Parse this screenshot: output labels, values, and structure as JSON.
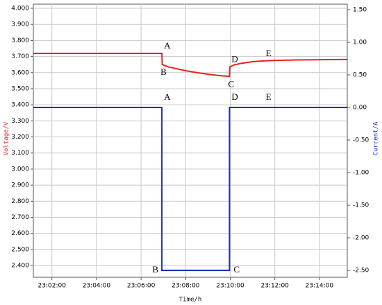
{
  "chart_data": {
    "type": "line",
    "xlabel": "Time/h",
    "ylabel": "Voltage/V",
    "y2label": "Current/A",
    "xlim": [
      "23:01:10",
      "23:15:15"
    ],
    "xticks": [
      "23:02:00",
      "23:04:00",
      "23:06:00",
      "23:08:00",
      "23:10:00",
      "23:12:00",
      "23:14:00"
    ],
    "ylim": [
      2.327,
      4.026
    ],
    "yticks": [
      {
        "value": 4.0,
        "label": "4.000"
      },
      {
        "value": 3.9,
        "label": "3.900"
      },
      {
        "value": 3.8,
        "label": "3.800"
      },
      {
        "value": 3.7,
        "label": "3.700"
      },
      {
        "value": 3.6,
        "label": "3.600"
      },
      {
        "value": 3.5,
        "label": "3.500"
      },
      {
        "value": 3.4,
        "label": "3.400"
      },
      {
        "value": 3.3,
        "label": "3.300"
      },
      {
        "value": 3.2,
        "label": "3.200"
      },
      {
        "value": 3.1,
        "label": "3.100"
      },
      {
        "value": 3.0,
        "label": "3.000"
      },
      {
        "value": 2.9,
        "label": "2.900"
      },
      {
        "value": 2.8,
        "label": "2.800"
      },
      {
        "value": 2.7,
        "label": "2.700"
      },
      {
        "value": 2.6,
        "label": "2.600"
      },
      {
        "value": 2.5,
        "label": "2.500"
      },
      {
        "value": 2.4,
        "label": "2.400"
      }
    ],
    "y2lim": [
      -2.606,
      1.585
    ],
    "y2ticks": [
      {
        "value": 1.5,
        "label": "1.50"
      },
      {
        "value": 1.0,
        "label": "1.00"
      },
      {
        "value": 0.5,
        "label": "0.50"
      },
      {
        "value": 0,
        "label": "0.00"
      },
      {
        "value": -0.5,
        "label": "-0.50"
      },
      {
        "value": -1.0,
        "label": "-1.00"
      },
      {
        "value": -1.5,
        "label": "-1.50"
      },
      {
        "value": -2.0,
        "label": "-2.00"
      },
      {
        "value": -2.5,
        "label": "-2.50"
      }
    ],
    "grid": true,
    "series": [
      {
        "name": "Voltage",
        "color": "#e8231d",
        "x": [
          "23:01:10",
          "23:06:56",
          "23:06:57",
          "23:07:15",
          "23:07:40",
          "23:08:00",
          "23:08:30",
          "23:09:00",
          "23:09:30",
          "23:09:55",
          "23:09:58",
          "23:09:59",
          "23:10:10",
          "23:10:30",
          "23:11:00",
          "23:11:30",
          "23:12:00",
          "23:13:00",
          "23:15:15"
        ],
        "values": [
          3.72,
          3.72,
          3.65,
          3.635,
          3.622,
          3.612,
          3.6,
          3.59,
          3.582,
          3.577,
          3.576,
          3.635,
          3.648,
          3.658,
          3.668,
          3.673,
          3.676,
          3.679,
          3.682
        ]
      },
      {
        "name": "Current",
        "color": "#1a2fbf",
        "axis": "y2",
        "x": [
          "23:01:10",
          "23:06:56",
          "23:06:56",
          "23:09:58",
          "23:09:58",
          "23:15:15"
        ],
        "values": [
          0,
          0,
          -2.5,
          -2.5,
          0,
          0
        ]
      }
    ],
    "annotations": [
      {
        "text": "A",
        "x": "23:06:56",
        "y": 3.72,
        "side": "above"
      },
      {
        "text": "B",
        "x": "23:06:56",
        "y": 3.65,
        "side": "below"
      },
      {
        "text": "C",
        "x": "23:09:58",
        "y": 3.576,
        "side": "below"
      },
      {
        "text": "D",
        "x": "23:09:58",
        "y": 3.635,
        "side": "above"
      },
      {
        "text": "E",
        "x": "23:11:30",
        "y": 3.673,
        "side": "above"
      },
      {
        "text": "A",
        "x": "23:06:56",
        "y": 3.4,
        "side": "above"
      },
      {
        "text": "B",
        "x": "23:06:56",
        "y": 2.37,
        "side": "left"
      },
      {
        "text": "C",
        "x": "23:09:58",
        "y": 2.37,
        "side": "right"
      },
      {
        "text": "D",
        "x": "23:09:58",
        "y": 3.4,
        "side": "above"
      },
      {
        "text": "E",
        "x": "23:11:30",
        "y": 3.4,
        "side": "above"
      }
    ]
  }
}
